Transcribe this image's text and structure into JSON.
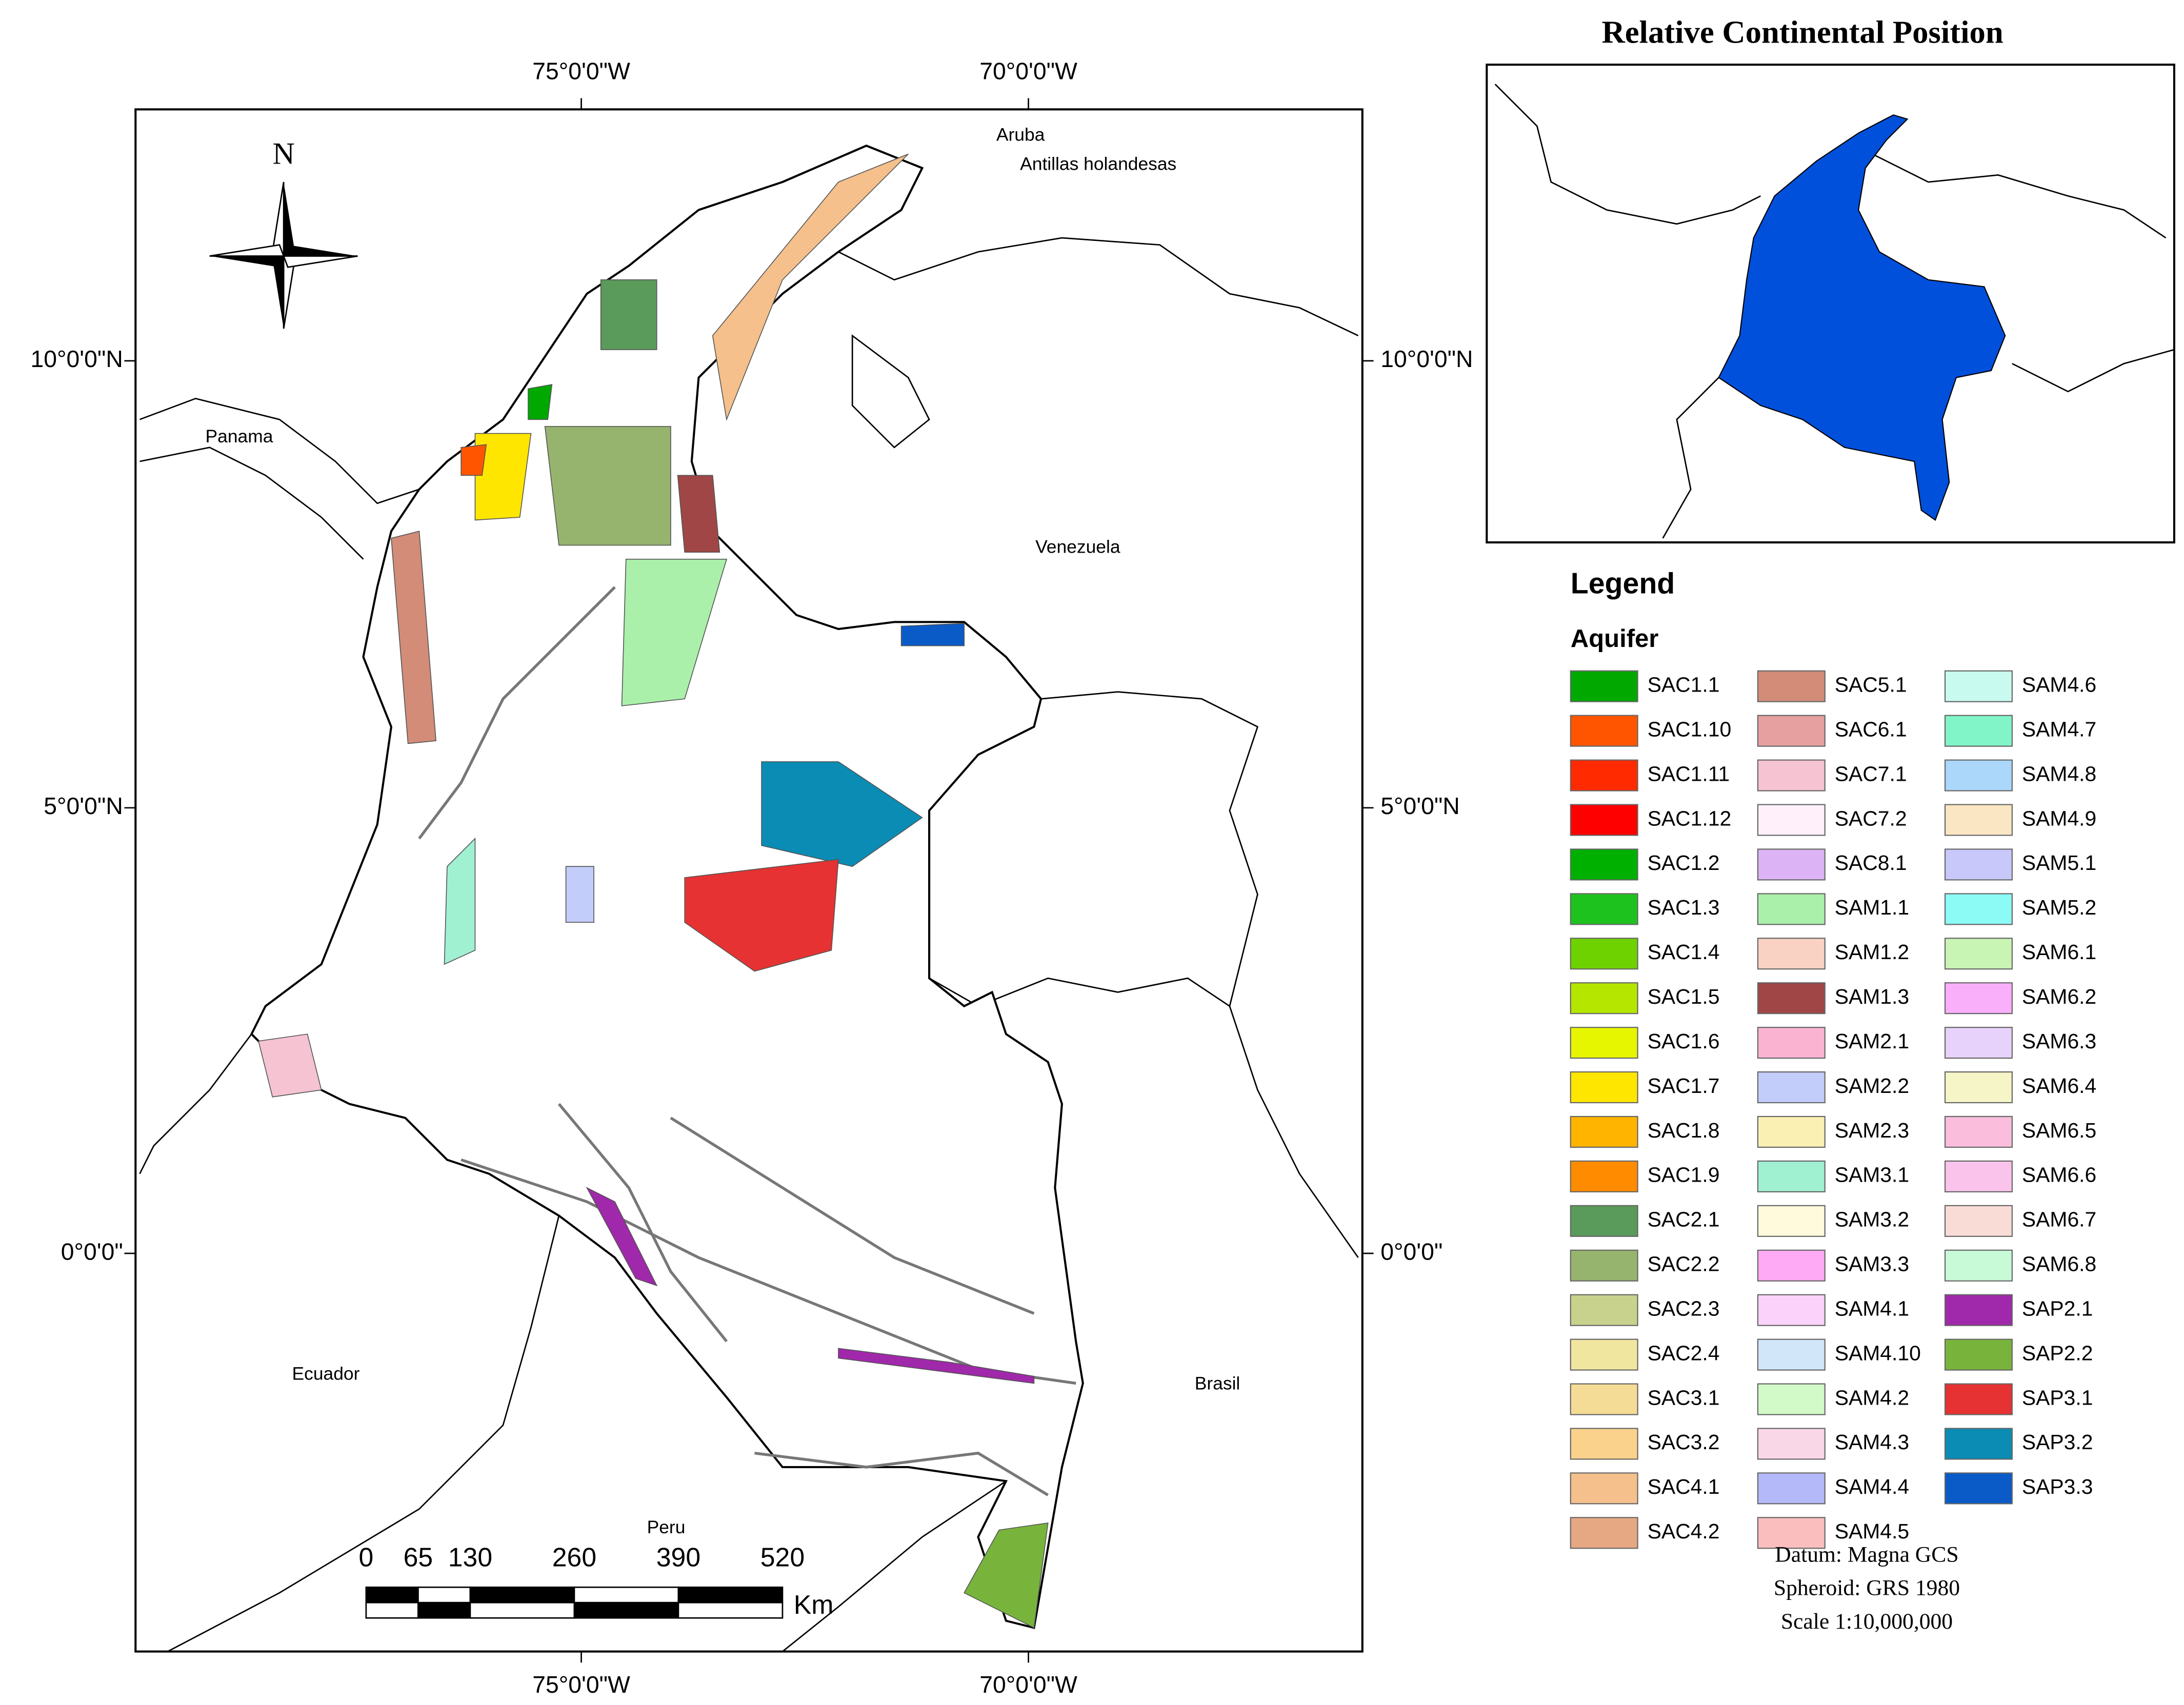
{
  "north": "N",
  "graticule": {
    "top": [
      "75°0'0\"W",
      "70°0'0\"W"
    ],
    "bottom": [
      "75°0'0\"W",
      "70°0'0\"W"
    ],
    "left": [
      "10°0'0\"N",
      "5°0'0\"N",
      "0°0'0\""
    ],
    "right": [
      "10°0'0\"N",
      "5°0'0\"N",
      "0°0'0\""
    ]
  },
  "place_labels": [
    "Aruba",
    "Antillas holandesas",
    "Panama",
    "Venezuela",
    "Ecuador",
    "Brasil",
    "Peru"
  ],
  "scale_bar": {
    "ticks": [
      0,
      65,
      130,
      260,
      390,
      520
    ],
    "unit": "Km"
  },
  "inset": {
    "title": "Relative Continental Position"
  },
  "legend": {
    "title": "Legend",
    "subtitle": "Aquifer",
    "items": [
      {
        "name": "SAC1.1",
        "color": "#00a800"
      },
      {
        "name": "SAC1.10",
        "color": "#ff5500"
      },
      {
        "name": "SAC1.11",
        "color": "#ff2a00"
      },
      {
        "name": "SAC1.12",
        "color": "#ff0000"
      },
      {
        "name": "SAC1.2",
        "color": "#00b000"
      },
      {
        "name": "SAC1.3",
        "color": "#1ec21e"
      },
      {
        "name": "SAC1.4",
        "color": "#6ed200"
      },
      {
        "name": "SAC1.5",
        "color": "#b4e600"
      },
      {
        "name": "SAC1.6",
        "color": "#e6f500"
      },
      {
        "name": "SAC1.7",
        "color": "#ffe600"
      },
      {
        "name": "SAC1.8",
        "color": "#ffb400"
      },
      {
        "name": "SAC1.9",
        "color": "#ff8c00"
      },
      {
        "name": "SAC2.1",
        "color": "#5a9a5a"
      },
      {
        "name": "SAC2.2",
        "color": "#96b46e"
      },
      {
        "name": "SAC2.3",
        "color": "#c8d28c"
      },
      {
        "name": "SAC2.4",
        "color": "#f0e6a0"
      },
      {
        "name": "SAC3.1",
        "color": "#f5dc96"
      },
      {
        "name": "SAC3.2",
        "color": "#fad28c"
      },
      {
        "name": "SAC4.1",
        "color": "#f5c08c"
      },
      {
        "name": "SAC4.2",
        "color": "#e6a882"
      },
      {
        "name": "SAC5.1",
        "color": "#d28c78"
      },
      {
        "name": "SAC6.1",
        "color": "#e6a0a0"
      },
      {
        "name": "SAC7.1",
        "color": "#f5c3d2"
      },
      {
        "name": "SAC7.2",
        "color": "#fff0fa"
      },
      {
        "name": "SAC8.1",
        "color": "#dcb4f5"
      },
      {
        "name": "SAM1.1",
        "color": "#aaf0aa"
      },
      {
        "name": "SAM1.2",
        "color": "#fad2c3"
      },
      {
        "name": "SAM1.3",
        "color": "#a04646"
      },
      {
        "name": "SAM2.1",
        "color": "#fab4d2"
      },
      {
        "name": "SAM2.2",
        "color": "#c3cdfa"
      },
      {
        "name": "SAM2.3",
        "color": "#faf0b4"
      },
      {
        "name": "SAM3.1",
        "color": "#a0f0d2"
      },
      {
        "name": "SAM3.2",
        "color": "#fffadc"
      },
      {
        "name": "SAM3.3",
        "color": "#ffaaf5"
      },
      {
        "name": "SAM4.1",
        "color": "#fad2fa"
      },
      {
        "name": "SAM4.10",
        "color": "#d2e6fa"
      },
      {
        "name": "SAM4.2",
        "color": "#d2fac8"
      },
      {
        "name": "SAM4.3",
        "color": "#fad7e6"
      },
      {
        "name": "SAM4.4",
        "color": "#b4b9fa"
      },
      {
        "name": "SAM4.5",
        "color": "#fabebe"
      },
      {
        "name": "SAM4.6",
        "color": "#c8faf0"
      },
      {
        "name": "SAM4.7",
        "color": "#82f5c8"
      },
      {
        "name": "SAM4.8",
        "color": "#aad7fa"
      },
      {
        "name": "SAM4.9",
        "color": "#fae6c3"
      },
      {
        "name": "SAM5.1",
        "color": "#c8c8fa"
      },
      {
        "name": "SAM5.2",
        "color": "#8cfaf5"
      },
      {
        "name": "SAM6.1",
        "color": "#c8f5b4"
      },
      {
        "name": "SAM6.2",
        "color": "#faaffa"
      },
      {
        "name": "SAM6.3",
        "color": "#e6d2fa"
      },
      {
        "name": "SAM6.4",
        "color": "#f5f5c8"
      },
      {
        "name": "SAM6.5",
        "color": "#fabedc"
      },
      {
        "name": "SAM6.6",
        "color": "#fac3eb"
      },
      {
        "name": "SAM6.7",
        "color": "#fadcd7"
      },
      {
        "name": "SAM6.8",
        "color": "#c8fad7"
      },
      {
        "name": "SAP2.1",
        "color": "#a028aa"
      },
      {
        "name": "SAP2.2",
        "color": "#78b43c"
      },
      {
        "name": "SAP3.1",
        "color": "#e63232"
      },
      {
        "name": "SAP3.2",
        "color": "#0a8cb4"
      },
      {
        "name": "SAP3.3",
        "color": "#0a5ac8"
      }
    ]
  },
  "notes": [
    "Datum: Magna GCS",
    "Spheroid: GRS 1980",
    "Scale 1:10,000,000"
  ]
}
